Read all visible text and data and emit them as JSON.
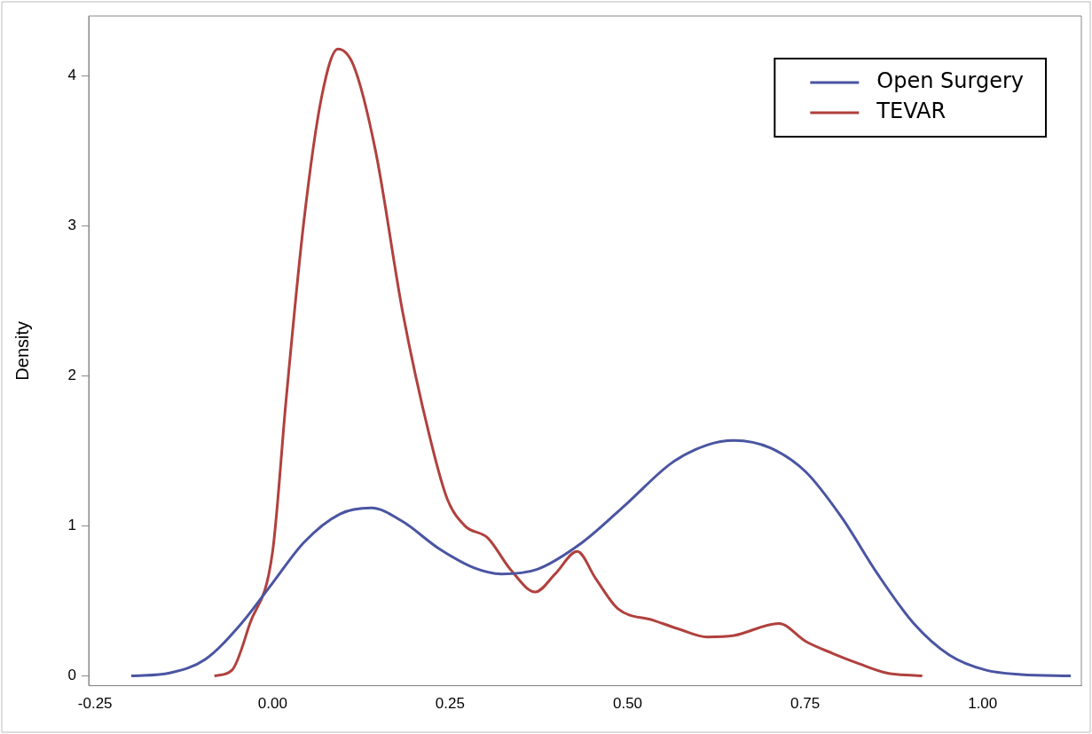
{
  "chart_data": {
    "type": "line",
    "ylabel": "Density",
    "xlim": [
      -0.259,
      1.139
    ],
    "ylim": [
      -0.065,
      4.4
    ],
    "xticks": [
      {
        "value": -0.25,
        "label": "-0.25"
      },
      {
        "value": 0,
        "label": "0.00"
      },
      {
        "value": 0.25,
        "label": "0.25"
      },
      {
        "value": 0.5,
        "label": "0.50"
      },
      {
        "value": 0.75,
        "label": "0.75"
      },
      {
        "value": 1,
        "label": "1.00"
      }
    ],
    "yticks": [
      0,
      1,
      2,
      3,
      4
    ],
    "grid": false,
    "legend": "top right",
    "marker": "none",
    "line_style": "solid",
    "series": [
      {
        "name": "Open Surgery",
        "color": "#4a55a2",
        "x": [
          -0.199,
          -0.145,
          -0.095,
          -0.044,
          0.0,
          0.044,
          0.095,
          0.139,
          0.183,
          0.234,
          0.284,
          0.322,
          0.372,
          0.436,
          0.499,
          0.562,
          0.612,
          0.65,
          0.701,
          0.751,
          0.801,
          0.852,
          0.903,
          0.953,
          1.004,
          1.054,
          1.124
        ],
        "values": [
          0,
          0.02,
          0.11,
          0.35,
          0.62,
          0.89,
          1.08,
          1.12,
          1.03,
          0.85,
          0.72,
          0.68,
          0.71,
          0.89,
          1.15,
          1.42,
          1.54,
          1.57,
          1.52,
          1.36,
          1.06,
          0.68,
          0.35,
          0.14,
          0.04,
          0.01,
          0
        ]
      },
      {
        "name": "TEVAR",
        "color": "#b0413e",
        "x": [
          -0.082,
          -0.057,
          -0.032,
          0.0,
          0.019,
          0.044,
          0.069,
          0.092,
          0.114,
          0.145,
          0.183,
          0.221,
          0.246,
          0.271,
          0.303,
          0.335,
          0.37,
          0.398,
          0.429,
          0.455,
          0.486,
          0.537,
          0.574,
          0.612,
          0.65,
          0.713,
          0.751,
          0.789,
          0.827,
          0.865,
          0.915
        ],
        "values": [
          0,
          0.04,
          0.35,
          0.83,
          1.84,
          3.03,
          3.86,
          4.18,
          4.07,
          3.5,
          2.43,
          1.6,
          1.18,
          1.0,
          0.92,
          0.71,
          0.56,
          0.68,
          0.83,
          0.65,
          0.45,
          0.37,
          0.31,
          0.26,
          0.27,
          0.35,
          0.23,
          0.15,
          0.08,
          0.02,
          0
        ]
      }
    ]
  }
}
